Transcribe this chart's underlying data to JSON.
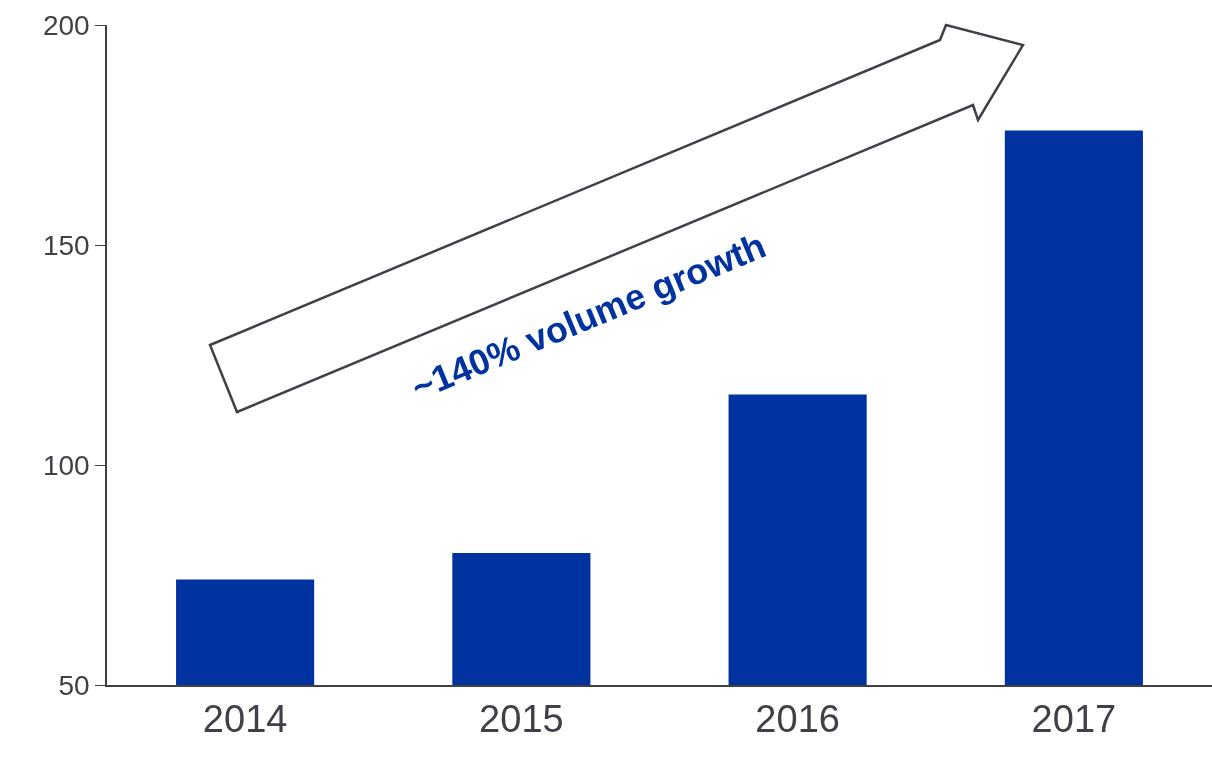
{
  "chart_data": {
    "type": "bar",
    "categories": [
      "2014",
      "2015",
      "2016",
      "2017"
    ],
    "values": [
      74,
      80,
      116,
      176
    ],
    "color": "#0033a0",
    "ylim": [
      50,
      200
    ],
    "yticks": [
      50,
      100,
      150,
      200
    ],
    "annotations": [
      "~140% volume growth"
    ]
  }
}
